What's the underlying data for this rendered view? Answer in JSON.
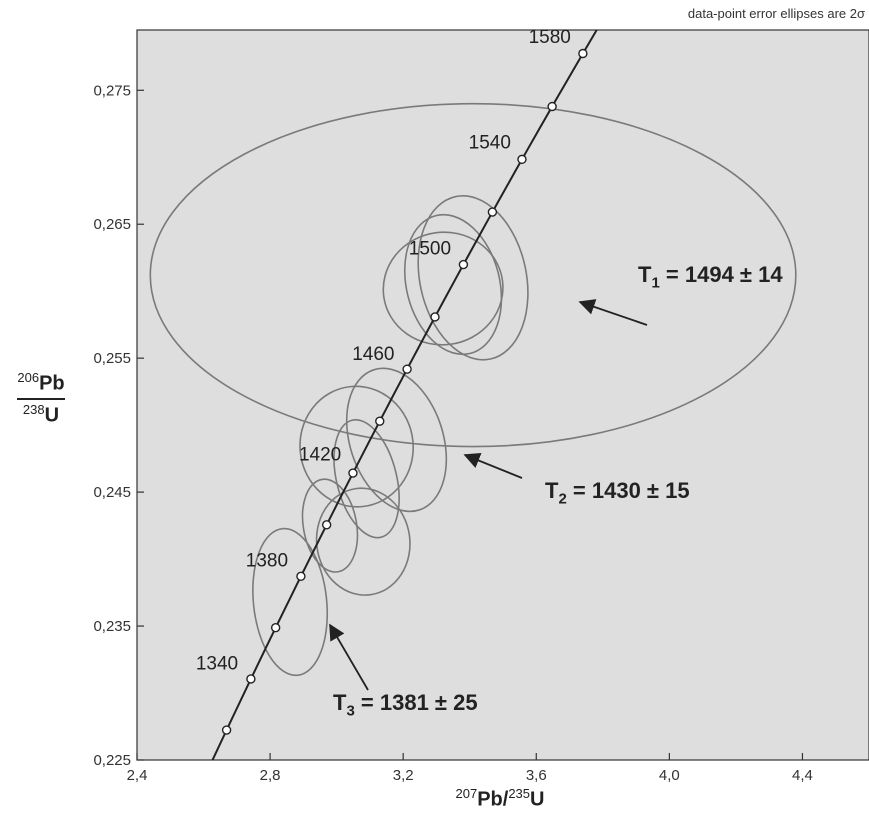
{
  "chart_data": {
    "type": "scatter",
    "title": "",
    "note": "data-point error ellipses are 2σ",
    "xlabel": {
      "pre": "207",
      "main": "Pb/",
      "mid": "235",
      "post": "U"
    },
    "ylabel": {
      "num_sup": "206",
      "num": "Pb",
      "den_sup": "238",
      "den": "U"
    },
    "xlim": [
      2.4,
      4.6
    ],
    "ylim": [
      0.225,
      0.2795
    ],
    "x_ticks": [
      {
        "value": 2.4,
        "label": "2,4"
      },
      {
        "value": 2.8,
        "label": "2,8"
      },
      {
        "value": 3.2,
        "label": "3,2"
      },
      {
        "value": 3.6,
        "label": "3,6"
      },
      {
        "value": 4.0,
        "label": "4,0"
      },
      {
        "value": 4.4,
        "label": "4,4"
      }
    ],
    "y_ticks": [
      {
        "value": 0.225,
        "label": "0,225"
      },
      {
        "value": 0.235,
        "label": "0,235"
      },
      {
        "value": 0.245,
        "label": "0,245"
      },
      {
        "value": 0.255,
        "label": "0,255"
      },
      {
        "value": 0.265,
        "label": "0,265"
      },
      {
        "value": 0.275,
        "label": "0,275"
      }
    ],
    "grid": false,
    "background": "#dedede",
    "colors": {
      "ellipse": "#7a7a7a",
      "concordia": "#222222",
      "text": "#222222"
    },
    "concordia": {
      "ages_ma": [
        1320,
        1340,
        1360,
        1380,
        1400,
        1420,
        1440,
        1460,
        1480,
        1500,
        1520,
        1540,
        1560,
        1580
      ],
      "age_labels": [
        {
          "age": "1340",
          "x": 2.74,
          "y": 0.231
        },
        {
          "age": "1380",
          "x": 2.89,
          "y": 0.2387
        },
        {
          "age": "1420",
          "x": 3.05,
          "y": 0.2466
        },
        {
          "age": "1460",
          "x": 3.21,
          "y": 0.2541
        },
        {
          "age": "1500",
          "x": 3.38,
          "y": 0.262
        },
        {
          "age": "1540",
          "x": 3.56,
          "y": 0.2699
        },
        {
          "age": "1580",
          "x": 3.74,
          "y": 0.2778
        }
      ]
    },
    "ellipses": [
      {
        "cx": 3.41,
        "cy": 0.2612,
        "rx": 0.97,
        "ry": 0.0128,
        "rot": 0
      },
      {
        "cx": 3.41,
        "cy": 0.261,
        "rx": 0.16,
        "ry": 0.0062,
        "rot": 12
      },
      {
        "cx": 3.35,
        "cy": 0.2605,
        "rx": 0.14,
        "ry": 0.0053,
        "rot": 14
      },
      {
        "cx": 3.32,
        "cy": 0.2602,
        "rx": 0.18,
        "ry": 0.0042,
        "rot": 8
      },
      {
        "cx": 3.18,
        "cy": 0.2489,
        "rx": 0.14,
        "ry": 0.0055,
        "rot": 18
      },
      {
        "cx": 3.06,
        "cy": 0.2484,
        "rx": 0.17,
        "ry": 0.0045,
        "rot": 6
      },
      {
        "cx": 3.09,
        "cy": 0.246,
        "rx": 0.09,
        "ry": 0.0045,
        "rot": 14
      },
      {
        "cx": 3.08,
        "cy": 0.2413,
        "rx": 0.14,
        "ry": 0.004,
        "rot": 8
      },
      {
        "cx": 2.98,
        "cy": 0.2425,
        "rx": 0.08,
        "ry": 0.0035,
        "rot": 10
      },
      {
        "cx": 2.86,
        "cy": 0.2368,
        "rx": 0.11,
        "ry": 0.0055,
        "rot": 6
      }
    ],
    "annotations": [
      {
        "label": "T",
        "sub": "1",
        "text": " = 1494 ± 14"
      },
      {
        "label": "T",
        "sub": "2",
        "text": " = 1430 ± 15"
      },
      {
        "label": "T",
        "sub": "3",
        "text": " = 1381 ± 25"
      }
    ]
  }
}
